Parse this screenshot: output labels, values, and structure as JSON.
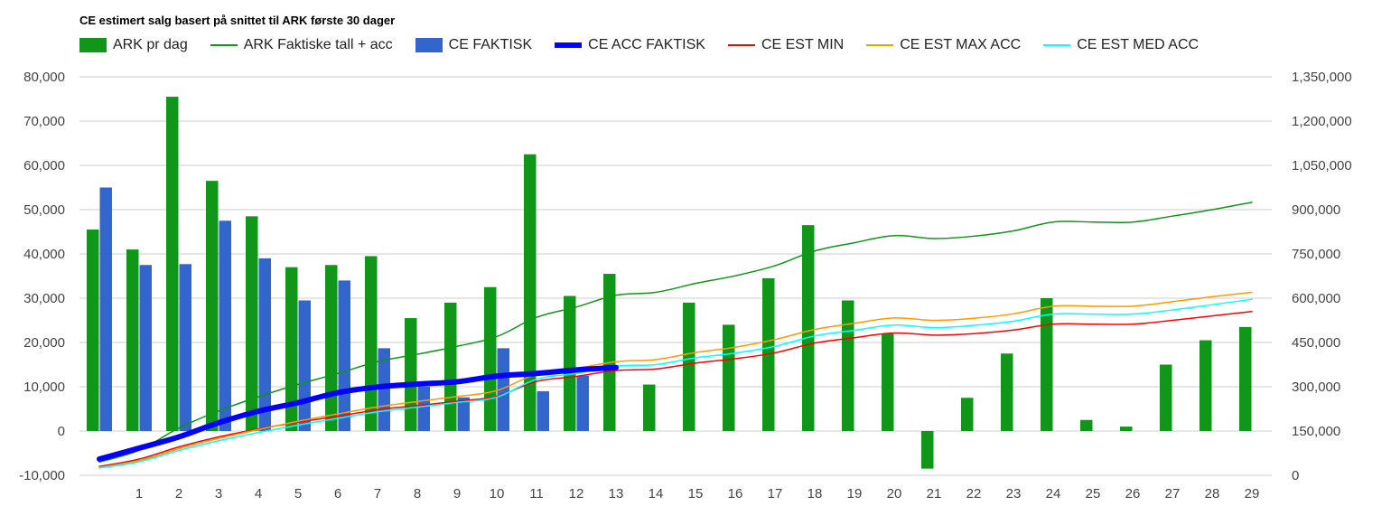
{
  "chart_data": {
    "type": "bar+line",
    "title": "CE estimert salg basert på snittet til ARK første 30 dager",
    "legend_position": "top",
    "grid": true,
    "categories": [
      "",
      "1",
      "2",
      "3",
      "4",
      "5",
      "6",
      "7",
      "8",
      "9",
      "10",
      "11",
      "12",
      "13",
      "14",
      "15",
      "16",
      "17",
      "18",
      "19",
      "20",
      "21",
      "22",
      "23",
      "24",
      "25",
      "26",
      "27",
      "28",
      "29"
    ],
    "y_left": {
      "min": -10000,
      "max": 80000,
      "step": 10000,
      "ticks": [
        "-10,000",
        "0",
        "10,000",
        "20,000",
        "30,000",
        "40,000",
        "50,000",
        "60,000",
        "70,000",
        "80,000"
      ]
    },
    "y_right": {
      "min": 0,
      "max": 1350000,
      "step": 150000,
      "ticks": [
        "0",
        "150,000",
        "300,000",
        "450,000",
        "600,000",
        "750,000",
        "900,000",
        "1,050,000",
        "1,200,000",
        "1,350,000"
      ]
    },
    "series": [
      {
        "name": "ARK pr dag",
        "kind": "bar",
        "axis": "left",
        "color": "#109618",
        "values": [
          45500,
          41000,
          75500,
          56500,
          48500,
          37000,
          37500,
          39500,
          25500,
          29000,
          32500,
          62500,
          30500,
          35500,
          10500,
          29000,
          24000,
          34500,
          46500,
          29500,
          22000,
          -8500,
          7500,
          17500,
          30000,
          2500,
          1000,
          15000,
          20500,
          23500
        ]
      },
      {
        "name": "CE FAKTISK",
        "kind": "bar",
        "axis": "left",
        "color": "#3366cc",
        "values": [
          55000,
          37500,
          37700,
          47500,
          39000,
          29500,
          34000,
          18700,
          10000,
          7600,
          18700,
          9000,
          12500,
          null,
          null,
          null,
          null,
          null,
          null,
          null,
          null,
          null,
          null,
          null,
          null,
          null,
          null,
          null,
          null,
          null
        ]
      },
      {
        "name": "ARK Faktiske tall + acc",
        "kind": "line",
        "axis": "right",
        "color": "#109618",
        "width": 1.5,
        "values": [
          45000,
          85000,
          160000,
          218000,
          266000,
          308000,
          345000,
          385000,
          410000,
          437000,
          470000,
          535000,
          570000,
          610000,
          620000,
          650000,
          676000,
          710000,
          760000,
          788000,
          812000,
          802000,
          810000,
          828000,
          858000,
          858000,
          858000,
          878000,
          900000,
          925000
        ]
      },
      {
        "name": "CE ACC FAKTISK",
        "kind": "line",
        "axis": "right",
        "color": "#0000ff",
        "width": 6,
        "values": [
          55000,
          92000,
          130000,
          178000,
          217000,
          246000,
          280000,
          299000,
          309000,
          317000,
          336000,
          345000,
          357000,
          365000,
          null,
          null,
          null,
          null,
          null,
          null,
          null,
          null,
          null,
          null,
          null,
          null,
          null,
          null,
          null,
          null
        ]
      },
      {
        "name": "CE EST MIN",
        "kind": "line",
        "axis": "right",
        "color": "#ff0000",
        "width": 1.5,
        "values": [
          30000,
          55000,
          96000,
          130000,
          157000,
          180000,
          200000,
          222000,
          236000,
          251000,
          268000,
          318000,
          335000,
          355000,
          360000,
          380000,
          395000,
          415000,
          448000,
          466000,
          482000,
          475000,
          480000,
          492000,
          512000,
          512000,
          512000,
          525000,
          540000,
          555000
        ]
      },
      {
        "name": "CE EST MAX ACC",
        "kind": "line",
        "axis": "right",
        "color": "#ff9900",
        "width": 1.5,
        "values": [
          27000,
          50000,
          90000,
          125000,
          155000,
          183000,
          208000,
          232000,
          250000,
          267000,
          287000,
          343000,
          362000,
          385000,
          392000,
          416000,
          434000,
          460000,
          494000,
          515000,
          533000,
          525000,
          532000,
          547000,
          573000,
          573000,
          573000,
          588000,
          605000,
          620000
        ]
      },
      {
        "name": "CE EST MED ACC",
        "kind": "line",
        "axis": "right",
        "color": "#00ffff",
        "width": 1.5,
        "values": [
          25000,
          46000,
          84000,
          117000,
          145000,
          170000,
          193000,
          215000,
          231000,
          247000,
          265000,
          325000,
          345000,
          370000,
          375000,
          398000,
          414000,
          437000,
          472000,
          491000,
          509000,
          500000,
          508000,
          522000,
          546000,
          546000,
          546000,
          560000,
          578000,
          596000
        ]
      }
    ]
  }
}
